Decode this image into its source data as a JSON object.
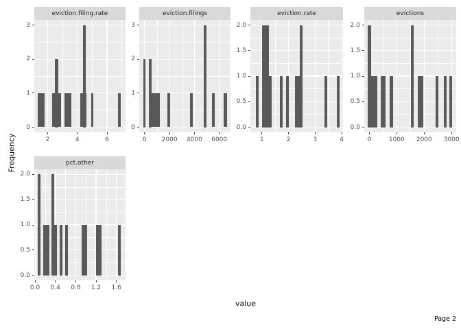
{
  "page": {
    "page_label": "Page 2"
  },
  "colors": {
    "bar_fill": "#595959",
    "panel_background": "#EBEBEB",
    "strip_background": "#D9D9D9",
    "gridline": "#FFFFFF",
    "axis_text": "#4D4D4D",
    "text": "#1A1A1A"
  },
  "chart_data": {
    "type": "bar",
    "subtype": "faceted-histograms",
    "xlabel": "value",
    "ylabel": "Frequency",
    "grid": "on",
    "legend": "none",
    "facets": [
      {
        "title": "eviction.filing.rate",
        "x_range": [
          1.1,
          7.25
        ],
        "y_range": [
          -0.15,
          3.15
        ],
        "x_ticks": [
          {
            "v": 2,
            "label": "2"
          },
          {
            "v": 4,
            "label": "4"
          },
          {
            "v": 6,
            "label": "6"
          }
        ],
        "y_ticks": [
          {
            "v": 0,
            "label": "0"
          },
          {
            "v": 1,
            "label": "1"
          },
          {
            "v": 2,
            "label": "2"
          },
          {
            "v": 3,
            "label": "3"
          }
        ],
        "bars": [
          {
            "x0": 1.32,
            "x1": 1.8,
            "h": 1
          },
          {
            "x0": 2.29,
            "x1": 2.91,
            "h": 1
          },
          {
            "x0": 2.49,
            "x1": 2.72,
            "h": 2
          },
          {
            "x0": 3.15,
            "x1": 3.61,
            "h": 1
          },
          {
            "x0": 4.18,
            "x1": 4.64,
            "h": 1
          },
          {
            "x0": 4.38,
            "x1": 4.59,
            "h": 3
          },
          {
            "x0": 4.92,
            "x1": 5.1,
            "h": 1
          },
          {
            "x0": 6.76,
            "x1": 6.94,
            "h": 1
          }
        ]
      },
      {
        "title": "eviction.filings",
        "x_range": [
          -430,
          6900
        ],
        "y_range": [
          -0.15,
          3.15
        ],
        "x_ticks": [
          {
            "v": 0,
            "label": "0"
          },
          {
            "v": 2000,
            "label": "2000"
          },
          {
            "v": 4000,
            "label": "4000"
          },
          {
            "v": 6000,
            "label": "6000"
          }
        ],
        "y_ticks": [
          {
            "v": 0,
            "label": "0"
          },
          {
            "v": 1,
            "label": "1"
          },
          {
            "v": 2,
            "label": "2"
          },
          {
            "v": 3,
            "label": "3"
          }
        ],
        "bars": [
          {
            "x0": -120,
            "x1": 90,
            "h": 2
          },
          {
            "x0": 350,
            "x1": 575,
            "h": 2
          },
          {
            "x0": 575,
            "x1": 1220,
            "h": 1
          },
          {
            "x0": 1830,
            "x1": 2055,
            "h": 1
          },
          {
            "x0": 3630,
            "x1": 3865,
            "h": 1
          },
          {
            "x0": 4755,
            "x1": 5000,
            "h": 3
          },
          {
            "x0": 5415,
            "x1": 5655,
            "h": 1
          },
          {
            "x0": 6370,
            "x1": 6600,
            "h": 1
          }
        ]
      },
      {
        "title": "eviction.rate",
        "x_range": [
          0.57,
          4.05
        ],
        "y_range": [
          -0.1,
          2.1
        ],
        "x_ticks": [
          {
            "v": 1,
            "label": "1"
          },
          {
            "v": 2,
            "label": "2"
          },
          {
            "v": 3,
            "label": "3"
          },
          {
            "v": 4,
            "label": "4"
          }
        ],
        "y_ticks": [
          {
            "v": 0,
            "label": "0.0"
          },
          {
            "v": 0.5,
            "label": "0.5"
          },
          {
            "v": 1,
            "label": "1.0"
          },
          {
            "v": 1.5,
            "label": "1.5"
          },
          {
            "v": 2,
            "label": "2.0"
          }
        ],
        "bars": [
          {
            "x0": 0.78,
            "x1": 0.89,
            "h": 1
          },
          {
            "x0": 1.0,
            "x1": 1.26,
            "h": 2
          },
          {
            "x0": 1.26,
            "x1": 1.36,
            "h": 1
          },
          {
            "x0": 1.68,
            "x1": 1.78,
            "h": 1
          },
          {
            "x0": 1.9,
            "x1": 2.01,
            "h": 1
          },
          {
            "x0": 2.24,
            "x1": 2.43,
            "h": 1
          },
          {
            "x0": 2.43,
            "x1": 2.54,
            "h": 2
          },
          {
            "x0": 3.36,
            "x1": 3.46,
            "h": 1
          },
          {
            "x0": 3.81,
            "x1": 3.91,
            "h": 1
          }
        ]
      },
      {
        "title": "evictions",
        "x_range": [
          -185,
          3170
        ],
        "y_range": [
          -0.1,
          2.1
        ],
        "x_ticks": [
          {
            "v": 0,
            "label": "0"
          },
          {
            "v": 1000,
            "label": "1000"
          },
          {
            "v": 2000,
            "label": "2000"
          },
          {
            "v": 3000,
            "label": "3000"
          }
        ],
        "y_ticks": [
          {
            "v": 0,
            "label": "0.0"
          },
          {
            "v": 0.5,
            "label": "0.5"
          },
          {
            "v": 1,
            "label": "1.0"
          },
          {
            "v": 1.5,
            "label": "1.5"
          },
          {
            "v": 2,
            "label": "2.0"
          }
        ],
        "bars": [
          {
            "x0": -58,
            "x1": 293,
            "h": 1
          },
          {
            "x0": -58,
            "x1": 68,
            "h": 2
          },
          {
            "x0": 418,
            "x1": 600,
            "h": 1
          },
          {
            "x0": 750,
            "x1": 860,
            "h": 1
          },
          {
            "x0": 1508,
            "x1": 1618,
            "h": 2
          },
          {
            "x0": 1758,
            "x1": 1968,
            "h": 1
          },
          {
            "x0": 2418,
            "x1": 2525,
            "h": 1
          },
          {
            "x0": 2710,
            "x1": 2810,
            "h": 1
          },
          {
            "x0": 2918,
            "x1": 3025,
            "h": 1
          }
        ]
      },
      {
        "title": "pct.other",
        "x_range": [
          -0.015,
          1.78
        ],
        "y_range": [
          -0.1,
          2.1
        ],
        "x_ticks": [
          {
            "v": 0,
            "label": "0.0"
          },
          {
            "v": 0.4,
            "label": "0.4"
          },
          {
            "v": 0.8,
            "label": "0.8"
          },
          {
            "v": 1.2,
            "label": "1.2"
          },
          {
            "v": 1.6,
            "label": "1.6"
          }
        ],
        "y_ticks": [
          {
            "v": 0,
            "label": "0.0"
          },
          {
            "v": 0.5,
            "label": "0.5"
          },
          {
            "v": 1,
            "label": "1.0"
          },
          {
            "v": 1.5,
            "label": "1.5"
          },
          {
            "v": 2,
            "label": "2.0"
          }
        ],
        "bars": [
          {
            "x0": 0.054,
            "x1": 0.112,
            "h": 2
          },
          {
            "x0": 0.166,
            "x1": 0.279,
            "h": 1
          },
          {
            "x0": 0.324,
            "x1": 0.382,
            "h": 2
          },
          {
            "x0": 0.382,
            "x1": 0.436,
            "h": 1
          },
          {
            "x0": 0.48,
            "x1": 0.535,
            "h": 1
          },
          {
            "x0": 0.595,
            "x1": 0.65,
            "h": 1
          },
          {
            "x0": 0.91,
            "x1": 1.02,
            "h": 1
          },
          {
            "x0": 1.2,
            "x1": 1.31,
            "h": 1
          },
          {
            "x0": 1.63,
            "x1": 1.69,
            "h": 1
          }
        ]
      }
    ]
  }
}
